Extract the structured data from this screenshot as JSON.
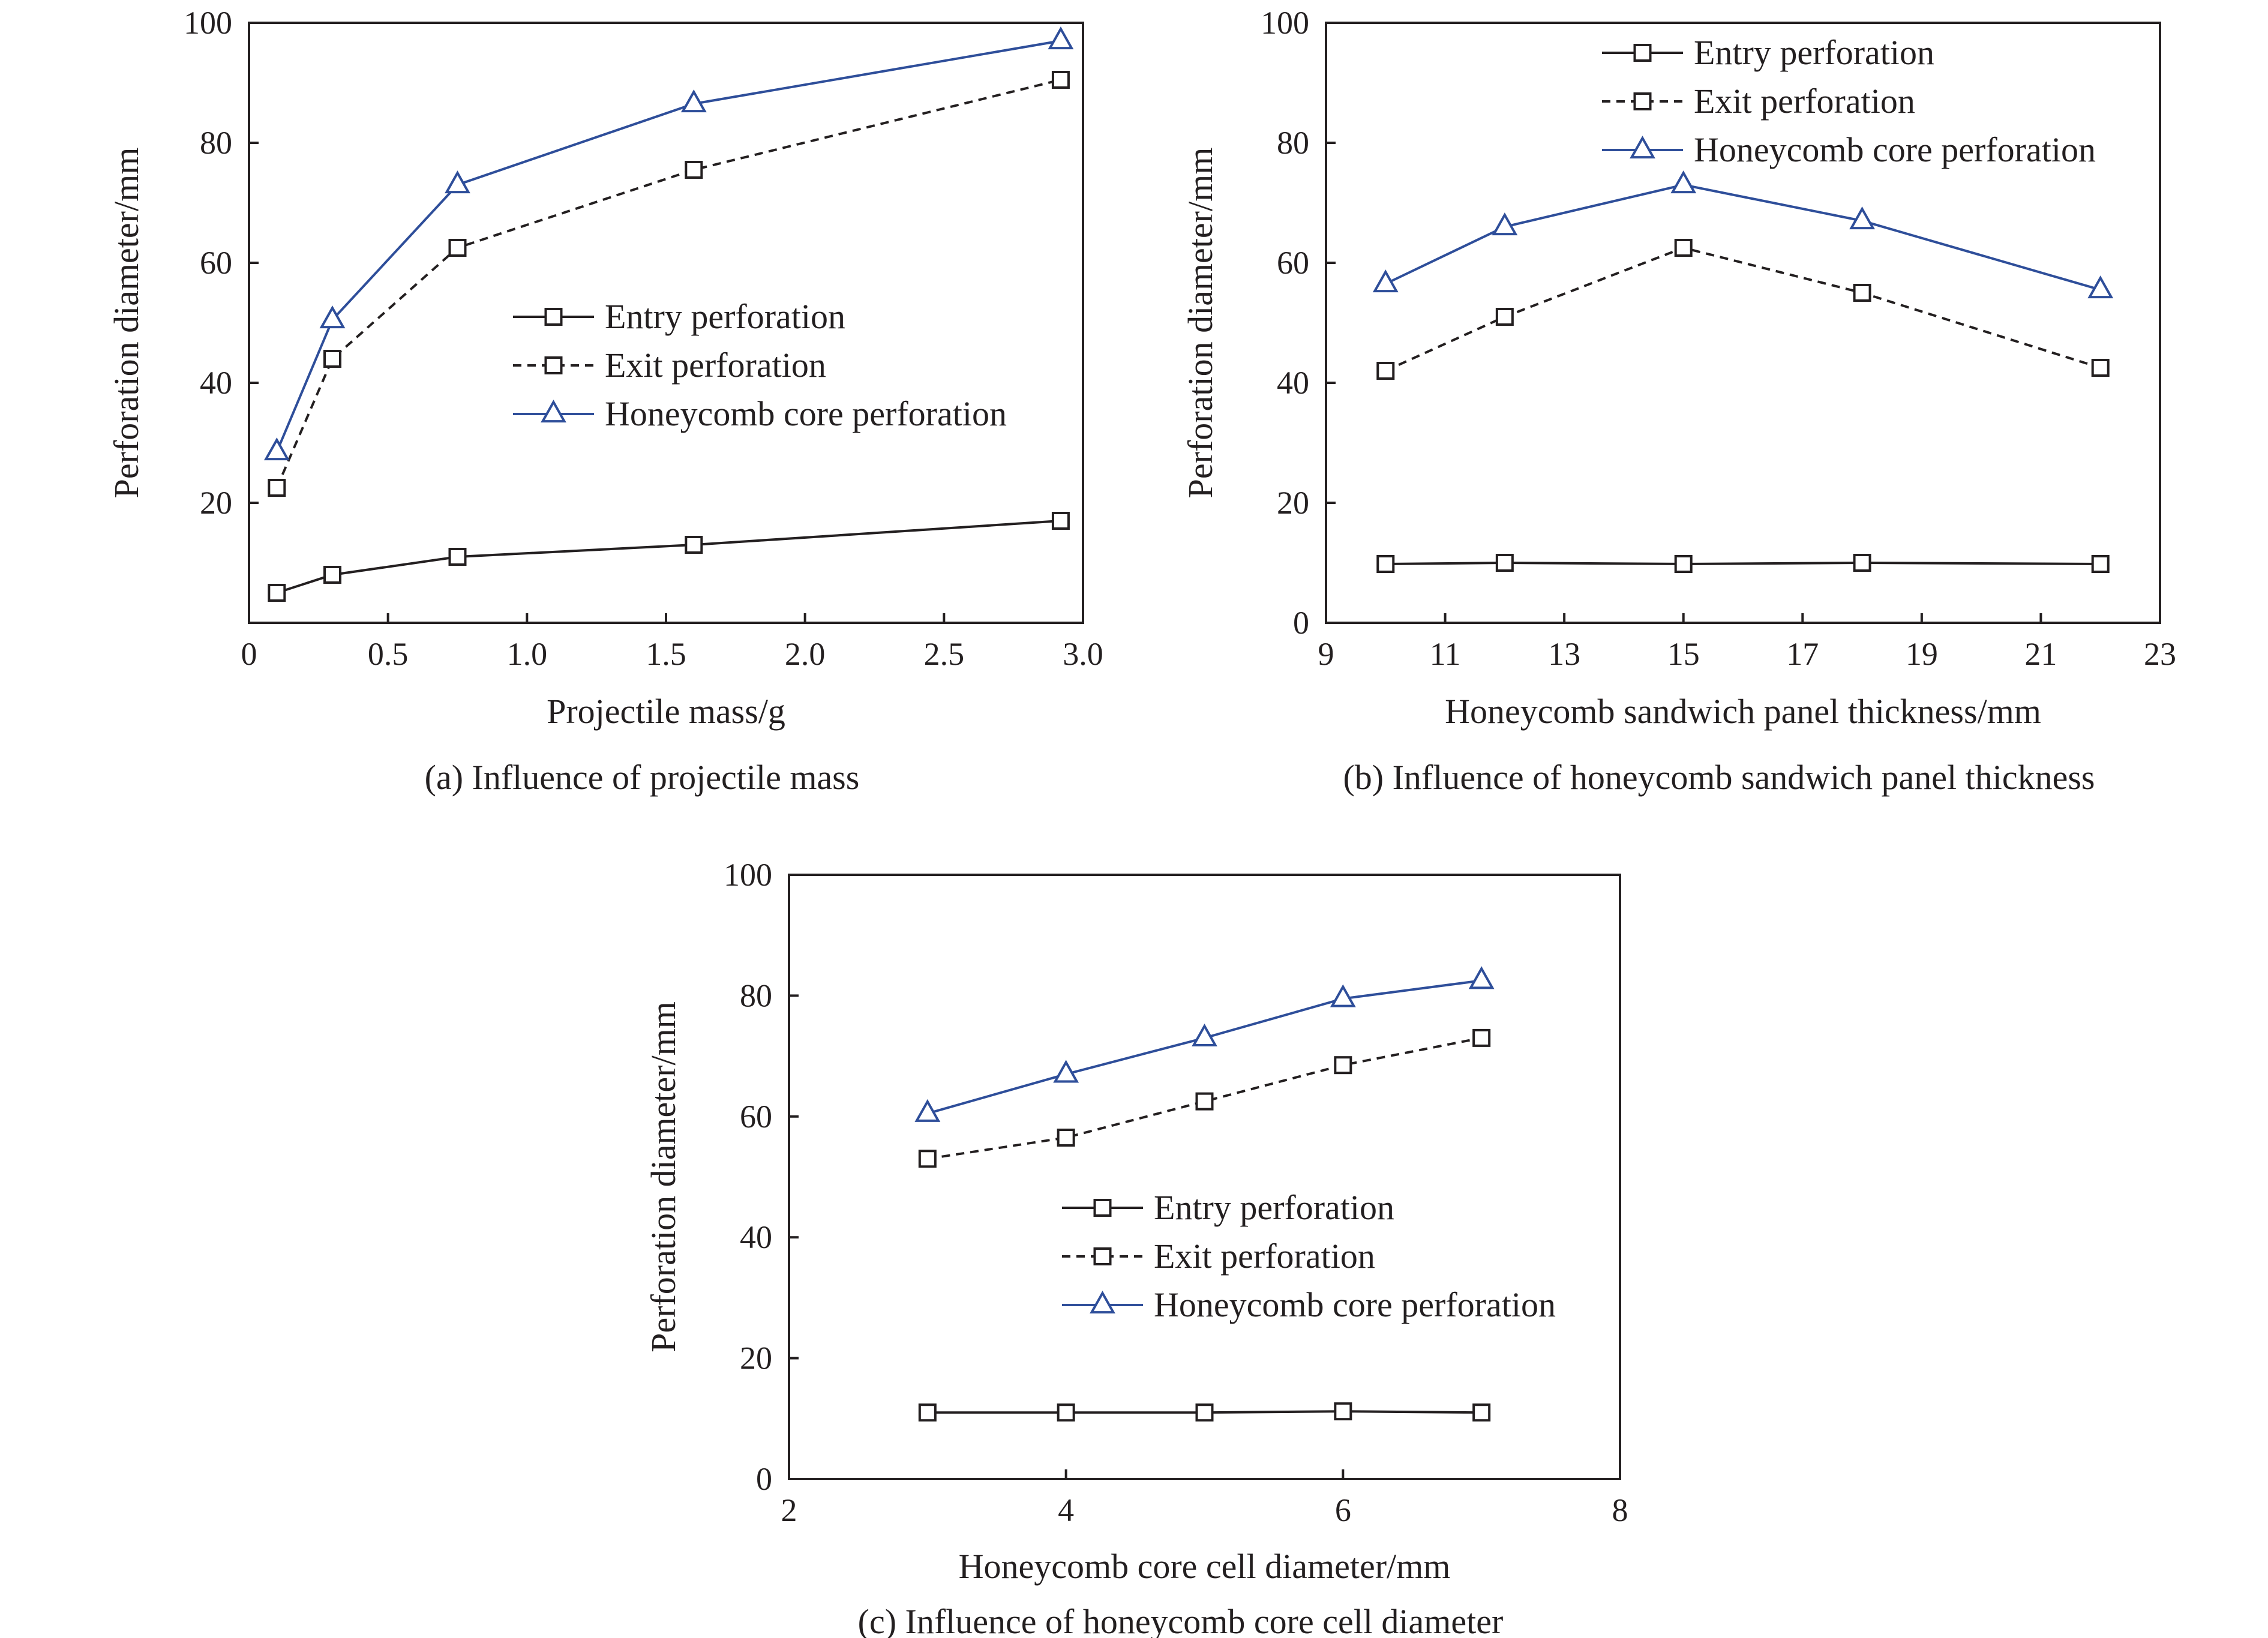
{
  "colors": {
    "axis": "#231f20",
    "black_series": "#231f20",
    "blue_series": "#2e4e9a"
  },
  "chart_data": [
    {
      "type": "line",
      "caption": "(a) Influence of projectile mass",
      "xlabel": "Projectile mass/g",
      "ylabel": "Perforation diameter/mm",
      "xlim": [
        0,
        3.0
      ],
      "ylim": [
        0,
        100
      ],
      "xticks": [
        0,
        0.5,
        1.0,
        1.5,
        2.0,
        2.5,
        3.0
      ],
      "xtick_labels": [
        "0",
        "0.5",
        "1.0",
        "1.5",
        "2.0",
        "2.5",
        "3.0"
      ],
      "yticks": [
        20,
        40,
        60,
        80,
        100
      ],
      "ytick_labels": [
        "20",
        "40",
        "60",
        "80",
        "100"
      ],
      "grid": false,
      "legend_position": "center-right",
      "x": [
        0.1,
        0.3,
        0.75,
        1.6,
        2.92
      ],
      "series": [
        {
          "name": "Entry perforation",
          "style": "solid",
          "marker": "square",
          "color": "#231f20",
          "values": [
            5,
            8,
            11,
            13,
            17
          ]
        },
        {
          "name": "Exit perforation",
          "style": "dashed",
          "marker": "square",
          "color": "#231f20",
          "values": [
            22.5,
            44,
            62.5,
            75.5,
            90.5
          ]
        },
        {
          "name": "Honeycomb core perforation",
          "style": "solid",
          "marker": "triangle",
          "color": "#2e4e9a",
          "values": [
            28.5,
            50.5,
            73,
            86.5,
            97
          ]
        }
      ]
    },
    {
      "type": "line",
      "caption": "(b) Influence of honeycomb sandwich panel thickness",
      "xlabel": "Honeycomb sandwich panel thickness/mm",
      "ylabel": "Perforation diameter/mm",
      "xlim": [
        9,
        23
      ],
      "ylim": [
        0,
        100
      ],
      "xticks": [
        9,
        11,
        13,
        15,
        17,
        19,
        21,
        23
      ],
      "xtick_labels": [
        "9",
        "11",
        "13",
        "15",
        "17",
        "19",
        "21",
        "23"
      ],
      "yticks": [
        0,
        20,
        40,
        60,
        80,
        100
      ],
      "ytick_labels": [
        "0",
        "20",
        "40",
        "60",
        "80",
        "100"
      ],
      "grid": false,
      "legend_position": "top-right",
      "x": [
        10,
        12,
        15,
        18,
        22
      ],
      "series": [
        {
          "name": "Entry perforation",
          "style": "solid",
          "marker": "square",
          "color": "#231f20",
          "values": [
            9.8,
            10,
            9.8,
            10,
            9.8
          ]
        },
        {
          "name": "Exit perforation",
          "style": "dashed",
          "marker": "square",
          "color": "#231f20",
          "values": [
            42,
            51,
            62.5,
            55,
            42.5
          ]
        },
        {
          "name": "Honeycomb core perforation",
          "style": "solid",
          "marker": "triangle",
          "color": "#2e4e9a",
          "values": [
            56.5,
            66,
            73,
            67,
            55.5
          ]
        }
      ]
    },
    {
      "type": "line",
      "caption": "(c) Influence of honeycomb core cell diameter",
      "xlabel": "Honeycomb core cell diameter/mm",
      "ylabel": "Perforation diameter/mm",
      "xlim": [
        2,
        8
      ],
      "ylim": [
        0,
        100
      ],
      "xticks": [
        2,
        4,
        6,
        8
      ],
      "xtick_labels": [
        "2",
        "4",
        "6",
        "8"
      ],
      "yticks": [
        0,
        20,
        40,
        60,
        80,
        100
      ],
      "ytick_labels": [
        "0",
        "20",
        "40",
        "60",
        "80",
        "100"
      ],
      "grid": false,
      "legend_position": "center-right",
      "x": [
        3,
        4,
        5,
        6,
        7
      ],
      "series": [
        {
          "name": "Entry perforation",
          "style": "solid",
          "marker": "square",
          "color": "#231f20",
          "values": [
            11,
            11,
            11,
            11.2,
            11
          ]
        },
        {
          "name": "Exit perforation",
          "style": "dashed",
          "marker": "square",
          "color": "#231f20",
          "values": [
            53,
            56.5,
            62.5,
            68.5,
            73
          ]
        },
        {
          "name": "Honeycomb core perforation",
          "style": "solid",
          "marker": "triangle",
          "color": "#2e4e9a",
          "values": [
            60.5,
            67,
            73,
            79.5,
            82.5
          ]
        }
      ]
    }
  ]
}
